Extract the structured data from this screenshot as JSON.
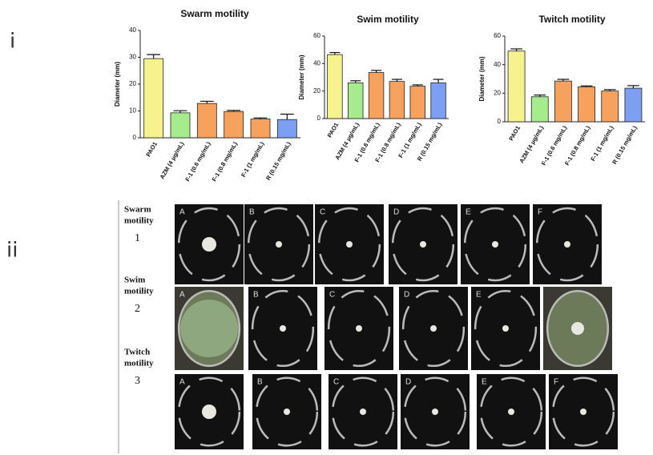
{
  "chart_data": [
    {
      "type": "bar",
      "title": "Swarm motility",
      "y_label": "Diameter (mm)",
      "categories": [
        "PAO1",
        "AZM (4 μg/mL)",
        "F-1 (0.6 mg/mL)",
        "F-1 (0.8 mg/mL)",
        "F-1 (1 mg/mL)",
        "R (0.15 mg/mL)"
      ],
      "values": [
        29.5,
        9.3,
        12.8,
        9.8,
        7.0,
        6.8
      ],
      "errors": [
        1.5,
        0.8,
        0.8,
        0.4,
        0.4,
        2.0
      ],
      "colors": [
        "#f6f28e",
        "#a6ec8c",
        "#f6a25e",
        "#f6a25e",
        "#f6a25e",
        "#7d9ff2"
      ],
      "ylim": [
        0,
        40
      ],
      "yticks": [
        0,
        10,
        20,
        30,
        40
      ]
    },
    {
      "type": "bar",
      "title": "Swim motility",
      "y_label": "Diameter (mm)",
      "categories": [
        "PAO1",
        "AZM (4 μg/mL)",
        "F-1 (0.6 mg/mL)",
        "F-1 (0.8 mg/mL)",
        "F-1 (1 mg/mL)",
        "R (0.15 mg/mL)"
      ],
      "values": [
        46.5,
        26,
        33.5,
        27,
        23.5,
        26
      ],
      "errors": [
        1.5,
        1.5,
        1.5,
        1.5,
        1,
        2.5
      ],
      "colors": [
        "#f6f28e",
        "#a6ec8c",
        "#f6a25e",
        "#f6a25e",
        "#f6a25e",
        "#7d9ff2"
      ],
      "ylim": [
        0,
        60
      ],
      "yticks": [
        0,
        20,
        40,
        60
      ]
    },
    {
      "type": "bar",
      "title": "Twitch motility",
      "y_label": "Diameter (mm)",
      "categories": [
        "PAO1",
        "AZM (4 μg/mL)",
        "F-1 (0.6 mg/mL)",
        "F-1 (0.8 mg/mL)",
        "F-1 (1 mg/mL)",
        "R (0.15 mg/mL)"
      ],
      "values": [
        49.5,
        17.5,
        28.5,
        24.5,
        21.5,
        23.5
      ],
      "errors": [
        1.5,
        1.2,
        1.2,
        0.6,
        1,
        1.8
      ],
      "colors": [
        "#f6f28e",
        "#a6ec8c",
        "#f6a25e",
        "#f6a25e",
        "#f6a25e",
        "#7d9ff2"
      ],
      "ylim": [
        0,
        60
      ],
      "yticks": [
        0,
        20,
        40,
        60
      ]
    }
  ],
  "figure": {
    "part_labels": [
      "i",
      "ii"
    ],
    "rows": [
      {
        "label": [
          "Swarm",
          "motility"
        ],
        "number": "1",
        "panels": [
          "A",
          "B",
          "C",
          "D",
          "E",
          "F"
        ]
      },
      {
        "label": [
          "Swim",
          "motility"
        ],
        "number": "2",
        "panels": [
          "A",
          "B",
          "C",
          "D",
          "E"
        ]
      },
      {
        "label": [
          "Twitch",
          "motility"
        ],
        "number": "3",
        "panels": [
          "A",
          "B",
          "C",
          "D",
          "E",
          "F"
        ]
      }
    ]
  }
}
